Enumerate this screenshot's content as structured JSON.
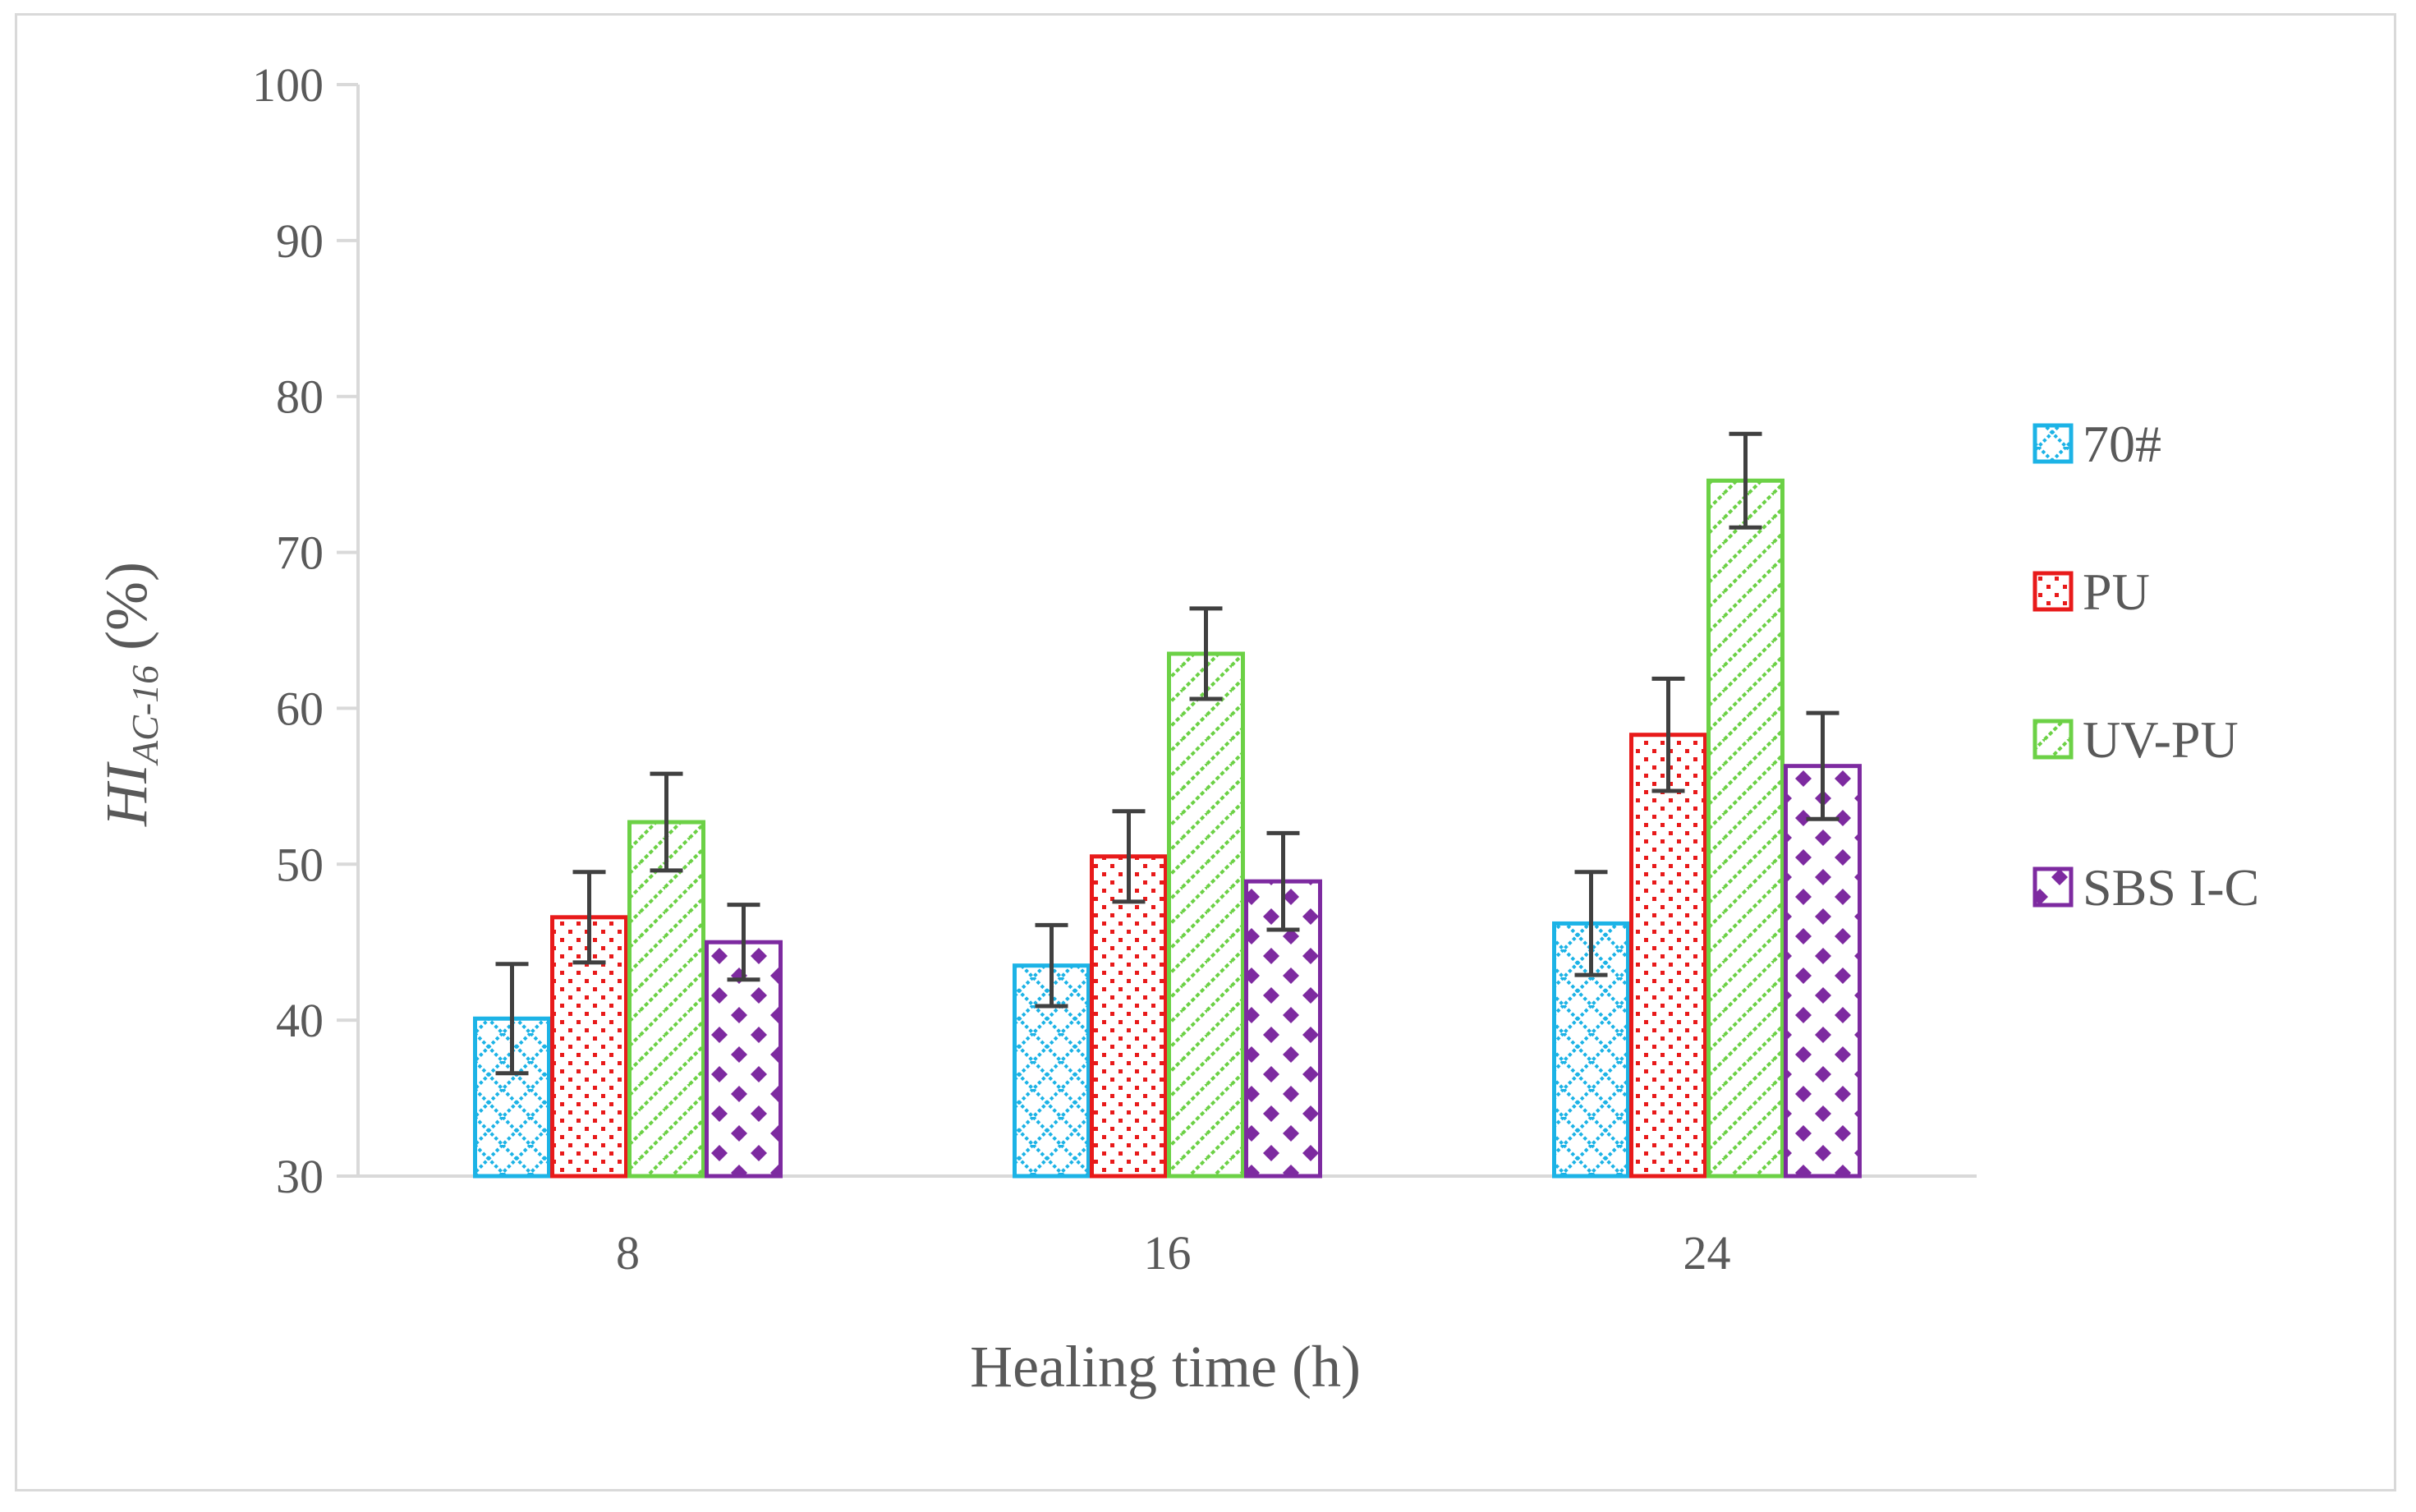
{
  "chart_data": {
    "type": "bar",
    "xlabel": "Healing time (h)",
    "ylabel": {
      "main": "HI",
      "subscript": "AC-16",
      "suffix": " (%)"
    },
    "categories": [
      "8",
      "16",
      "24"
    ],
    "ylim": [
      30,
      100
    ],
    "yticks": [
      "30",
      "40",
      "50",
      "60",
      "70",
      "80",
      "90",
      "100"
    ],
    "grid": false,
    "legend_position": "right",
    "series": [
      {
        "name": "70#",
        "color": "#1cb3e6",
        "pattern": "crosshatch",
        "values": [
          40.1,
          43.5,
          46.2
        ],
        "errors": [
          3.5,
          2.6,
          3.3
        ]
      },
      {
        "name": "PU",
        "color": "#e81a1a",
        "pattern": "dots",
        "values": [
          46.6,
          50.5,
          58.3
        ],
        "errors": [
          2.9,
          2.9,
          3.6
        ]
      },
      {
        "name": "UV-PU",
        "color": "#6cd146",
        "pattern": "diagonal",
        "values": [
          52.7,
          63.5,
          74.6
        ],
        "errors": [
          3.1,
          2.9,
          3.0
        ]
      },
      {
        "name": "SBS I-C",
        "color": "#7d2aa0",
        "pattern": "diamonds",
        "values": [
          45.0,
          48.9,
          56.3
        ],
        "errors": [
          2.4,
          3.1,
          3.4
        ]
      }
    ]
  }
}
